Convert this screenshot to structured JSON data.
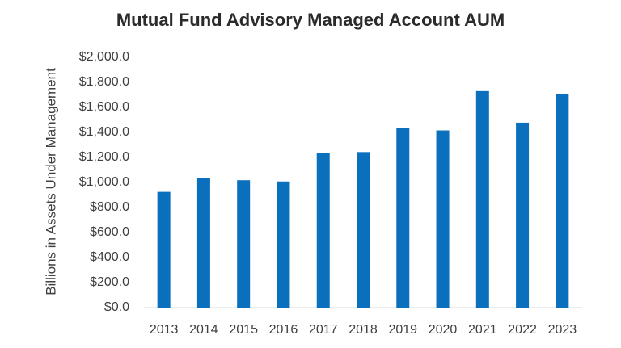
{
  "chart_data": {
    "type": "bar",
    "title": "Mutual Fund Advisory Managed Account AUM",
    "xlabel": "",
    "ylabel": "Billions in Assets Under Management",
    "categories": [
      "2013",
      "2014",
      "2015",
      "2016",
      "2017",
      "2018",
      "2019",
      "2020",
      "2021",
      "2022",
      "2023"
    ],
    "values": [
      925,
      1035,
      1018,
      1008,
      1238,
      1243,
      1438,
      1416,
      1730,
      1478,
      1708
    ],
    "ylim": [
      0,
      2000
    ],
    "yticks": [
      0,
      200,
      400,
      600,
      800,
      1000,
      1200,
      1400,
      1600,
      1800,
      2000
    ],
    "ytick_labels": [
      "$0.0",
      "$200.0",
      "$400.0",
      "$600.0",
      "$800.0",
      "$1,000.0",
      "$1,200.0",
      "$1,400.0",
      "$1,600.0",
      "$1,800.0",
      "$2,000.0"
    ],
    "bar_color": "#0a6fbd",
    "grid": false,
    "legend": "none"
  }
}
